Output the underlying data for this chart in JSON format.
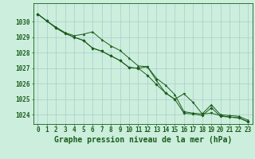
{
  "title": "Graphe pression niveau de la mer (hPa)",
  "background_color": "#cceedd",
  "grid_color": "#aacccc",
  "line_color": "#1a5c1a",
  "x_values": [
    0,
    1,
    2,
    3,
    4,
    5,
    6,
    7,
    8,
    9,
    10,
    11,
    12,
    13,
    14,
    15,
    16,
    17,
    18,
    19,
    20,
    21,
    22,
    23
  ],
  "series1": [
    1030.5,
    1030.05,
    1029.65,
    1029.3,
    1029.1,
    1029.2,
    1029.35,
    1028.85,
    1028.45,
    1028.15,
    1027.65,
    1027.15,
    1027.1,
    1026.35,
    1025.9,
    1025.3,
    1024.2,
    1024.1,
    1024.05,
    1024.65,
    1024.0,
    1023.95,
    1023.9,
    1023.65
  ],
  "series2": [
    1030.5,
    1030.05,
    1029.6,
    1029.25,
    1029.0,
    1028.8,
    1028.3,
    1028.1,
    1027.8,
    1027.5,
    1027.05,
    1027.0,
    1027.1,
    1026.2,
    1025.4,
    1025.0,
    1025.35,
    1024.8,
    1024.05,
    1024.1,
    1023.95,
    1023.85,
    1023.8,
    1023.55
  ],
  "series3": [
    1030.5,
    1030.05,
    1029.6,
    1029.25,
    1029.0,
    1028.8,
    1028.3,
    1028.1,
    1027.8,
    1027.5,
    1027.05,
    1027.0,
    1026.55,
    1025.95,
    1025.4,
    1025.0,
    1024.1,
    1024.05,
    1023.95,
    1024.45,
    1023.9,
    1023.85,
    1023.8,
    1023.55
  ],
  "ylim_min": 1023.4,
  "ylim_max": 1031.2,
  "yticks": [
    1024,
    1025,
    1026,
    1027,
    1028,
    1029,
    1030
  ],
  "x_tick_labels": [
    "0",
    "1",
    "2",
    "3",
    "4",
    "5",
    "6",
    "7",
    "8",
    "9",
    "10",
    "11",
    "12",
    "13",
    "14",
    "15",
    "16",
    "17",
    "18",
    "19",
    "20",
    "21",
    "22",
    "23"
  ],
  "title_fontsize": 7,
  "tick_fontsize": 5.5
}
